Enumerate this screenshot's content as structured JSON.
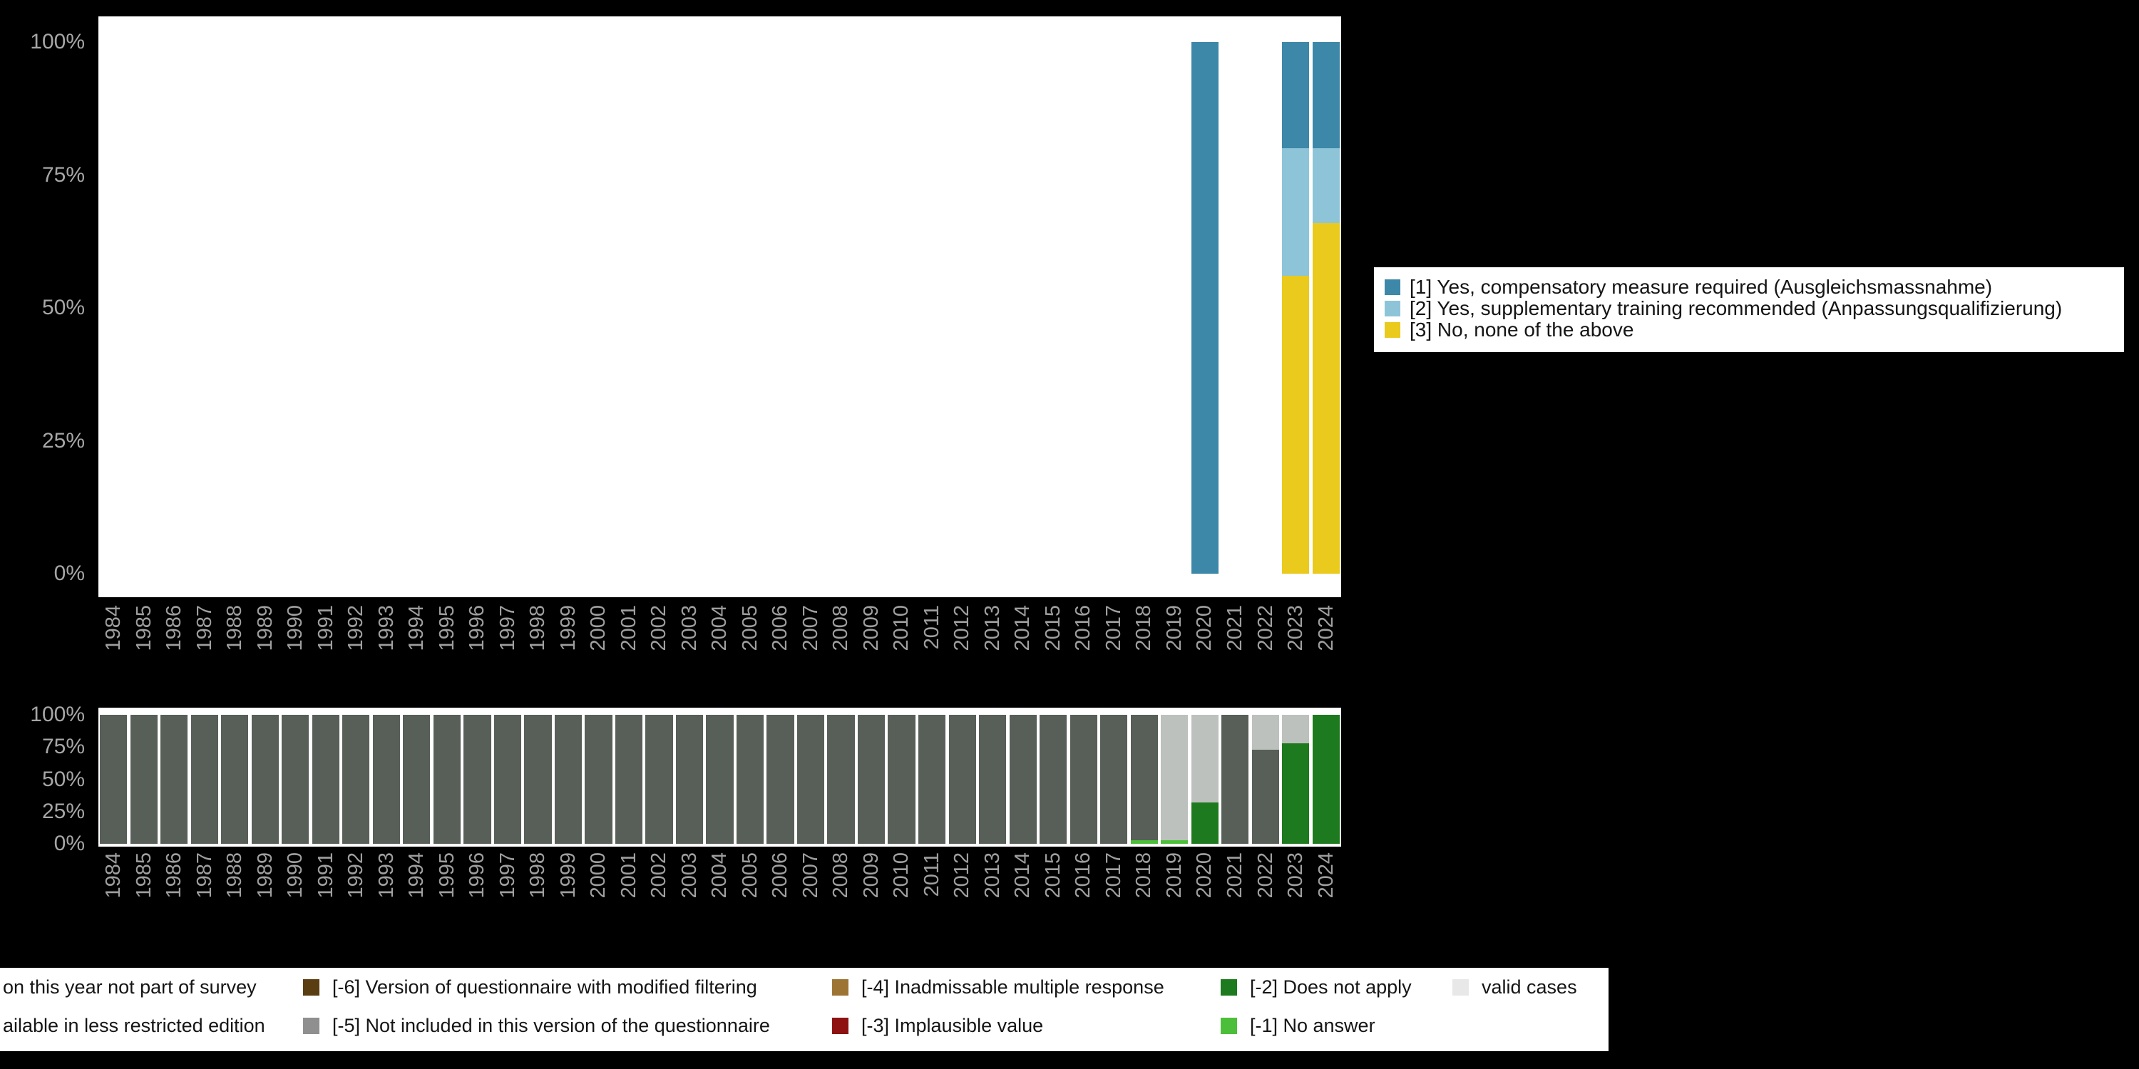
{
  "colors": {
    "background": "#000000",
    "plot_background": "#ffffff",
    "axis_text": "#a6a6a6",
    "legend_background": "#ffffff",
    "legend_text": "#151515",
    "cat1_blue": "#3d88a8",
    "cat2_lightblue": "#8ec4d8",
    "cat3_yellow": "#e9ca1d",
    "not_part_gray": "#575f58",
    "valid_gray_bar": "#bdc1bd",
    "valid_gray_legend": "#e8e8e8",
    "does_not_apply_green": "#1e7a1e",
    "no_answer_green": "#4cbf3a",
    "m6_brown": "#5a3d11",
    "m5_gray": "#8f8f8f",
    "m4_tan": "#9e7434",
    "m3_darkred": "#8e1212"
  },
  "legend_top": {
    "items": [
      {
        "label": "[1] Yes, compensatory measure required (Ausgleichsmassnahme)"
      },
      {
        "label": "[2] Yes, supplementary training recommended (Anpassungsqualifizierung)"
      },
      {
        "label": "[3] No, none of the above"
      }
    ]
  },
  "legend_bottom": {
    "items": [
      {
        "label": "on this year not part of survey"
      },
      {
        "label": "ailable in less restricted edition"
      },
      {
        "label": "[-6] Version of questionnaire with modified filtering"
      },
      {
        "label": "[-5] Not included in this version of the questionnaire"
      },
      {
        "label": "[-4] Inadmissable multiple response"
      },
      {
        "label": "[-3] Implausible value"
      },
      {
        "label": "[-2] Does not apply"
      },
      {
        "label": "[-1] No answer"
      },
      {
        "label": "valid cases"
      }
    ]
  },
  "chart_data": [
    {
      "id": "top_chart",
      "type": "bar",
      "stacked": true,
      "title": "",
      "xlabel": "",
      "ylabel": "",
      "ylim": [
        0,
        100
      ],
      "grid": false,
      "legend_position": "right",
      "stack_order": "bottom_to_top",
      "categories": [
        "1984",
        "1985",
        "1986",
        "1987",
        "1988",
        "1989",
        "1990",
        "1991",
        "1992",
        "1993",
        "1994",
        "1995",
        "1996",
        "1997",
        "1998",
        "1999",
        "2000",
        "2001",
        "2002",
        "2003",
        "2004",
        "2005",
        "2006",
        "2007",
        "2008",
        "2009",
        "2010",
        "2011",
        "2012",
        "2013",
        "2014",
        "2015",
        "2016",
        "2017",
        "2018",
        "2019",
        "2020",
        "2021",
        "2022",
        "2023",
        "2024"
      ],
      "yticks": [
        {
          "label": "100%",
          "value": 100
        },
        {
          "label": "75%",
          "value": 75
        },
        {
          "label": "50%",
          "value": 50
        },
        {
          "label": "25%",
          "value": 25
        },
        {
          "label": "0%",
          "value": 0
        }
      ],
      "series": [
        {
          "name": "[3] No, none of the above",
          "color": "#e9ca1d",
          "values": [
            0,
            0,
            0,
            0,
            0,
            0,
            0,
            0,
            0,
            0,
            0,
            0,
            0,
            0,
            0,
            0,
            0,
            0,
            0,
            0,
            0,
            0,
            0,
            0,
            0,
            0,
            0,
            0,
            0,
            0,
            0,
            0,
            0,
            0,
            0,
            0,
            0,
            0,
            0,
            56,
            66
          ]
        },
        {
          "name": "[2] Yes, supplementary training recommended (Anpassungsqualifizierung)",
          "color": "#8ec4d8",
          "values": [
            0,
            0,
            0,
            0,
            0,
            0,
            0,
            0,
            0,
            0,
            0,
            0,
            0,
            0,
            0,
            0,
            0,
            0,
            0,
            0,
            0,
            0,
            0,
            0,
            0,
            0,
            0,
            0,
            0,
            0,
            0,
            0,
            0,
            0,
            0,
            0,
            0,
            0,
            0,
            24,
            14
          ]
        },
        {
          "name": "[1] Yes, compensatory measure required (Ausgleichsmassnahme)",
          "color": "#3d88a8",
          "values": [
            0,
            0,
            0,
            0,
            0,
            0,
            0,
            0,
            0,
            0,
            0,
            0,
            0,
            0,
            0,
            0,
            0,
            0,
            0,
            0,
            0,
            0,
            0,
            0,
            0,
            0,
            0,
            0,
            0,
            0,
            0,
            0,
            0,
            0,
            0,
            0,
            100,
            0,
            0,
            20,
            20
          ]
        }
      ]
    },
    {
      "id": "bottom_chart",
      "type": "bar",
      "stacked": true,
      "title": "",
      "xlabel": "",
      "ylabel": "",
      "ylim": [
        0,
        100
      ],
      "grid": false,
      "legend_position": "bottom",
      "stack_order": "bottom_to_top",
      "categories": [
        "1984",
        "1985",
        "1986",
        "1987",
        "1988",
        "1989",
        "1990",
        "1991",
        "1992",
        "1993",
        "1994",
        "1995",
        "1996",
        "1997",
        "1998",
        "1999",
        "2000",
        "2001",
        "2002",
        "2003",
        "2004",
        "2005",
        "2006",
        "2007",
        "2008",
        "2009",
        "2010",
        "2011",
        "2012",
        "2013",
        "2014",
        "2015",
        "2016",
        "2017",
        "2018",
        "2019",
        "2020",
        "2021",
        "2022",
        "2023",
        "2024"
      ],
      "yticks": [
        {
          "label": "100%",
          "value": 100
        },
        {
          "label": "75%",
          "value": 75
        },
        {
          "label": "50%",
          "value": 50
        },
        {
          "label": "25%",
          "value": 25
        },
        {
          "label": "0%",
          "value": 0
        }
      ],
      "series": [
        {
          "name": "[-1] No answer",
          "color": "#4cbf3a",
          "values": [
            0,
            0,
            0,
            0,
            0,
            0,
            0,
            0,
            0,
            0,
            0,
            0,
            0,
            0,
            0,
            0,
            0,
            0,
            0,
            0,
            0,
            0,
            0,
            0,
            0,
            0,
            0,
            0,
            0,
            0,
            0,
            0,
            0,
            0,
            3,
            3,
            0,
            0,
            0,
            0,
            0
          ]
        },
        {
          "name": "[-2] Does not apply",
          "color": "#1e7a1e",
          "values": [
            0,
            0,
            0,
            0,
            0,
            0,
            0,
            0,
            0,
            0,
            0,
            0,
            0,
            0,
            0,
            0,
            0,
            0,
            0,
            0,
            0,
            0,
            0,
            0,
            0,
            0,
            0,
            0,
            0,
            0,
            0,
            0,
            0,
            0,
            0,
            0,
            32,
            0,
            0,
            78,
            100
          ]
        },
        {
          "name": "on this year not part of survey",
          "color": "#575f58",
          "values": [
            100,
            100,
            100,
            100,
            100,
            100,
            100,
            100,
            100,
            100,
            100,
            100,
            100,
            100,
            100,
            100,
            100,
            100,
            100,
            100,
            100,
            100,
            100,
            100,
            100,
            100,
            100,
            100,
            100,
            100,
            100,
            100,
            100,
            100,
            97,
            0,
            0,
            100,
            73,
            0,
            0
          ]
        },
        {
          "name": "valid cases",
          "color": "#bdc1bd",
          "values": [
            0,
            0,
            0,
            0,
            0,
            0,
            0,
            0,
            0,
            0,
            0,
            0,
            0,
            0,
            0,
            0,
            0,
            0,
            0,
            0,
            0,
            0,
            0,
            0,
            0,
            0,
            0,
            0,
            0,
            0,
            0,
            0,
            0,
            0,
            0,
            97,
            68,
            0,
            27,
            22,
            0
          ]
        }
      ]
    }
  ]
}
